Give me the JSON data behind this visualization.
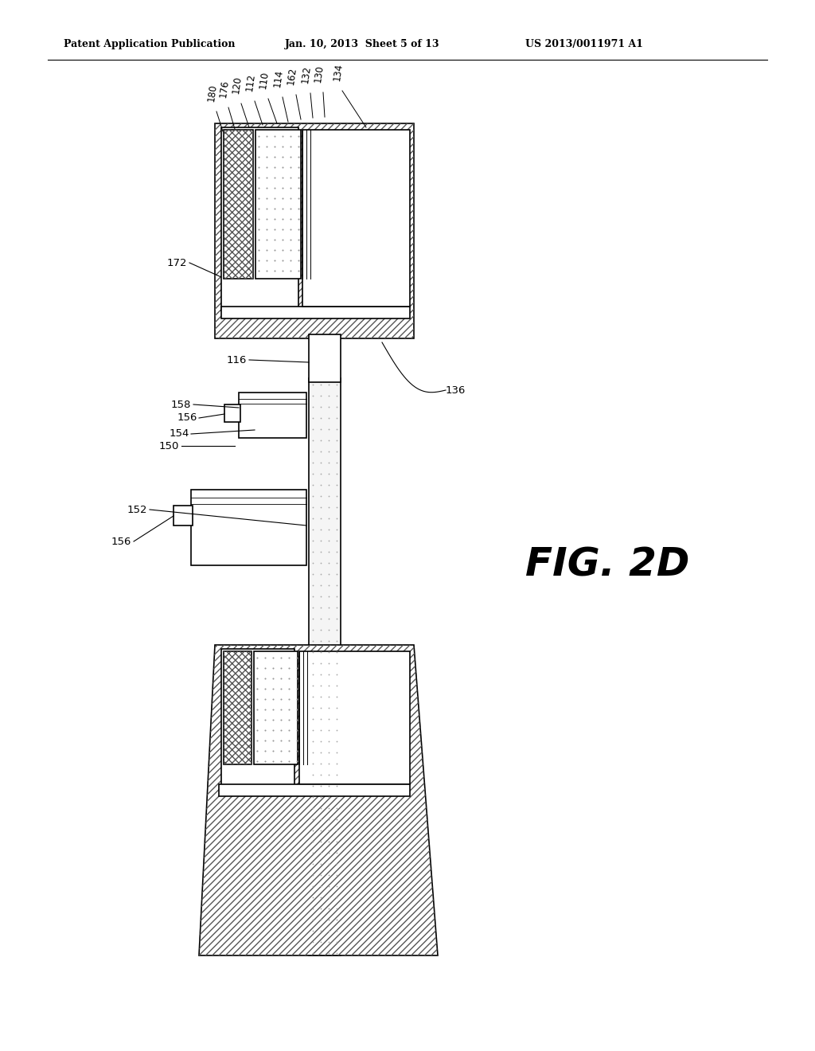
{
  "title_left": "Patent Application Publication",
  "title_mid": "Jan. 10, 2013  Sheet 5 of 13",
  "title_right": "US 2013/0011971 A1",
  "fig_label": "FIG. 2D",
  "background": "#ffffff",
  "lc": "#000000",
  "lw": 1.2
}
